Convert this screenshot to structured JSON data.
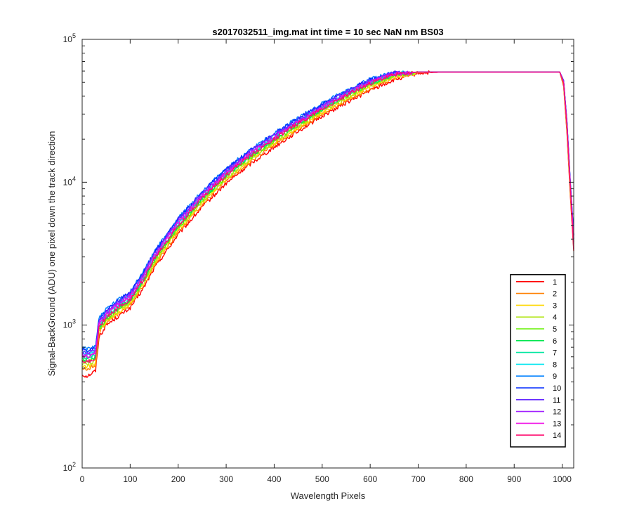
{
  "chart_data": {
    "type": "line",
    "title": "s2017032511_img.mat int time = 10 sec  NaN nm BS03",
    "xlabel": "Wavelength Pixels",
    "ylabel": "Signal-BackGround (ADU) one pixel down the track direction",
    "xlim": [
      0,
      1024
    ],
    "ylim": [
      100,
      100000
    ],
    "yscale": "log",
    "x_ticks": [
      0,
      100,
      200,
      300,
      400,
      500,
      600,
      700,
      800,
      900,
      1000
    ],
    "y_ticks": [
      {
        "value": 100,
        "base": "10",
        "exp": "2"
      },
      {
        "value": 1000,
        "base": "10",
        "exp": "3"
      },
      {
        "value": 10000,
        "base": "10",
        "exp": "4"
      },
      {
        "value": 100000,
        "base": "10",
        "exp": "5"
      }
    ],
    "grid": false,
    "legend_position": "bottom-right",
    "x": [
      0,
      10,
      20,
      28,
      35,
      50,
      75,
      100,
      125,
      150,
      200,
      250,
      300,
      350,
      400,
      450,
      500,
      550,
      600,
      650,
      700,
      750,
      800,
      900,
      995,
      1003,
      1010,
      1017,
      1024
    ],
    "series": [
      {
        "name": "1",
        "color": "#ff0000",
        "values": [
          450,
          440,
          460,
          480,
          820,
          1000,
          1150,
          1320,
          1750,
          2500,
          4300,
          6700,
          9800,
          13400,
          17600,
          22800,
          29000,
          36000,
          44000,
          52000,
          58000,
          59000,
          59000,
          59000,
          59000,
          47000,
          22000,
          8000,
          3300
        ]
      },
      {
        "name": "2",
        "color": "#ff8000",
        "values": [
          500,
          490,
          510,
          520,
          880,
          1040,
          1200,
          1380,
          1820,
          2600,
          4500,
          7000,
          10200,
          13900,
          18200,
          23600,
          30000,
          37200,
          45500,
          53500,
          58500,
          59000,
          59000,
          59000,
          59000,
          48000,
          23000,
          8500,
          3500
        ]
      },
      {
        "name": "3",
        "color": "#ffd700",
        "values": [
          520,
          510,
          530,
          540,
          900,
          1060,
          1230,
          1410,
          1870,
          2680,
          4640,
          7200,
          10500,
          14300,
          18700,
          24200,
          30800,
          38200,
          46600,
          54500,
          58800,
          59000,
          59000,
          59000,
          59000,
          48500,
          23500,
          8800,
          3600
        ]
      },
      {
        "name": "4",
        "color": "#b4e61e",
        "values": [
          540,
          530,
          550,
          560,
          920,
          1080,
          1260,
          1440,
          1910,
          2740,
          4740,
          7350,
          10700,
          14600,
          19100,
          24700,
          31400,
          39000,
          47500,
          55300,
          59000,
          59000,
          59000,
          59000,
          59000,
          49000,
          24000,
          9000,
          3700
        ]
      },
      {
        "name": "5",
        "color": "#64f000",
        "values": [
          560,
          550,
          570,
          580,
          940,
          1100,
          1290,
          1470,
          1950,
          2800,
          4840,
          7500,
          10900,
          14900,
          19500,
          25200,
          32000,
          39800,
          48400,
          56000,
          59000,
          59000,
          59000,
          59000,
          59000,
          49500,
          24500,
          9200,
          3800
        ]
      },
      {
        "name": "6",
        "color": "#00e650",
        "values": [
          580,
          570,
          590,
          600,
          960,
          1120,
          1320,
          1500,
          1990,
          2860,
          4940,
          7650,
          11100,
          15200,
          19900,
          25700,
          32600,
          40500,
          49300,
          56600,
          59000,
          59000,
          59000,
          59000,
          59000,
          50000,
          25000,
          9400,
          3900
        ]
      },
      {
        "name": "7",
        "color": "#00e6a0",
        "values": [
          600,
          590,
          610,
          620,
          990,
          1150,
          1350,
          1540,
          2040,
          2930,
          5060,
          7830,
          11350,
          15500,
          20300,
          26200,
          33200,
          41200,
          50200,
          57200,
          59000,
          59000,
          59000,
          59000,
          59000,
          50500,
          25500,
          9600,
          4000
        ]
      },
      {
        "name": "8",
        "color": "#00e6f0",
        "values": [
          640,
          630,
          650,
          660,
          1040,
          1200,
          1400,
          1600,
          2120,
          3040,
          5250,
          8100,
          11700,
          16000,
          20900,
          27000,
          34100,
          42200,
          51200,
          57800,
          59000,
          59000,
          59000,
          59000,
          59000,
          51000,
          26000,
          9800,
          4100
        ]
      },
      {
        "name": "9",
        "color": "#0080ff",
        "values": [
          690,
          680,
          700,
          720,
          1120,
          1290,
          1500,
          1720,
          2280,
          3260,
          5600,
          8600,
          12400,
          16900,
          22000,
          28300,
          35600,
          43900,
          52900,
          58500,
          59000,
          59000,
          59000,
          59000,
          59000,
          51500,
          26500,
          10000,
          4300
        ]
      },
      {
        "name": "10",
        "color": "#0028ff",
        "values": [
          670,
          660,
          680,
          700,
          1100,
          1270,
          1480,
          1700,
          2250,
          3220,
          5530,
          8500,
          12250,
          16700,
          21700,
          27900,
          35100,
          43300,
          52300,
          58300,
          59000,
          59000,
          59000,
          59000,
          59000,
          51500,
          26500,
          10000,
          4300
        ]
      },
      {
        "name": "11",
        "color": "#6428ff",
        "values": [
          650,
          640,
          660,
          680,
          1070,
          1240,
          1450,
          1660,
          2200,
          3150,
          5420,
          8350,
          12050,
          16400,
          21300,
          27400,
          34500,
          42600,
          51600,
          58100,
          59000,
          59000,
          59000,
          59000,
          59000,
          51000,
          26000,
          9800,
          4200
        ]
      },
      {
        "name": "12",
        "color": "#a01eff",
        "values": [
          630,
          620,
          640,
          650,
          1040,
          1210,
          1410,
          1620,
          2150,
          3080,
          5300,
          8180,
          11800,
          16100,
          20900,
          26900,
          33900,
          41900,
          50800,
          57700,
          59000,
          59000,
          59000,
          59000,
          59000,
          50500,
          25500,
          9600,
          4000
        ]
      },
      {
        "name": "13",
        "color": "#f014e6",
        "values": [
          610,
          600,
          620,
          630,
          1010,
          1180,
          1380,
          1580,
          2100,
          3010,
          5180,
          8000,
          11550,
          15800,
          20500,
          26400,
          33300,
          41200,
          50000,
          57200,
          59000,
          59000,
          59000,
          59000,
          59000,
          50000,
          25000,
          9400,
          3800
        ]
      },
      {
        "name": "14",
        "color": "#ff0a6e",
        "values": [
          560,
          550,
          570,
          580,
          960,
          1130,
          1320,
          1520,
          2020,
          2900,
          5000,
          7750,
          11250,
          15400,
          20000,
          25800,
          32600,
          40400,
          49200,
          56600,
          59000,
          59000,
          59000,
          59000,
          59000,
          49500,
          24500,
          9200,
          3400
        ]
      }
    ]
  }
}
